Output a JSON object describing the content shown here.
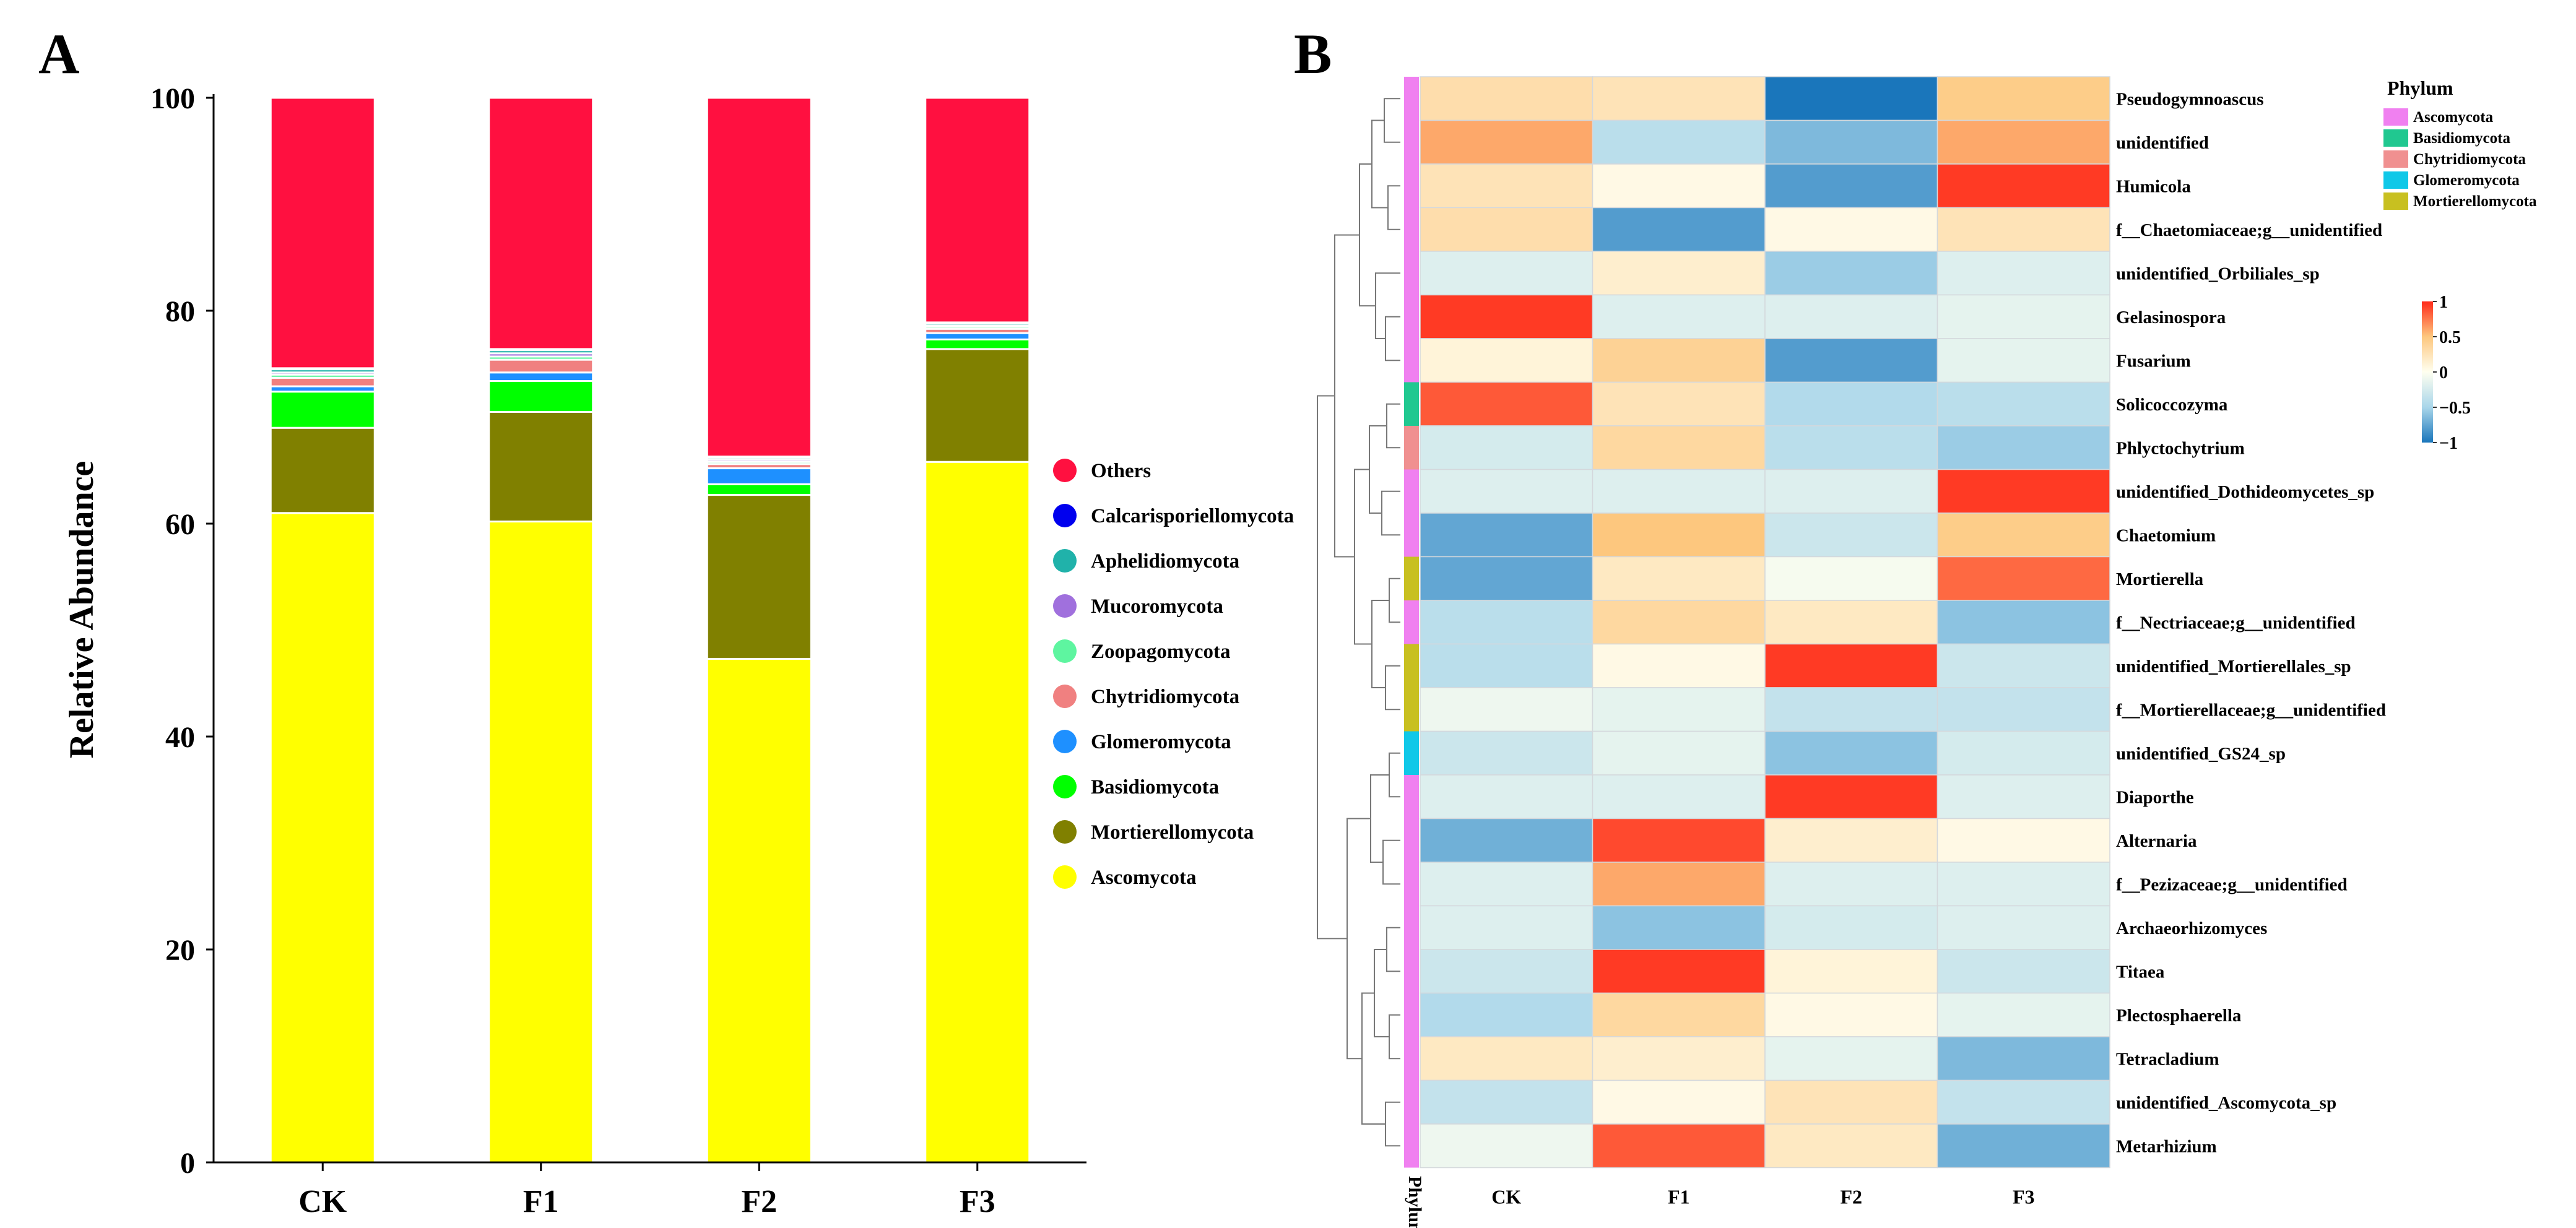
{
  "panel_a": {
    "label": "A",
    "chart_data": {
      "type": "bar",
      "stacked": true,
      "categories": [
        "CK",
        "F1",
        "F2",
        "F3"
      ],
      "ylabel": "Relative Abundance",
      "xlabel": "",
      "ylim": [
        0,
        100
      ],
      "yticks": [
        0,
        20,
        40,
        60,
        80,
        100
      ],
      "legend_position": "right",
      "series": [
        {
          "name": "Ascomycota",
          "color": "#ffff00",
          "values": [
            61.0,
            60.2,
            47.3,
            65.8
          ]
        },
        {
          "name": "Mortierellomycota",
          "color": "#808000",
          "values": [
            8.0,
            10.3,
            15.4,
            10.6
          ]
        },
        {
          "name": "Basidiomycota",
          "color": "#00ff00",
          "values": [
            3.4,
            2.9,
            1.0,
            0.9
          ]
        },
        {
          "name": "Glomeromycota",
          "color": "#1e90ff",
          "values": [
            0.5,
            0.8,
            1.5,
            0.6
          ]
        },
        {
          "name": "Chytridiomycota",
          "color": "#f08080",
          "values": [
            0.8,
            1.2,
            0.4,
            0.4
          ]
        },
        {
          "name": "Zoopagomycota",
          "color": "#5ef5a0",
          "values": [
            0.3,
            0.3,
            0.2,
            0.2
          ]
        },
        {
          "name": "Mucoromycota",
          "color": "#a070dd",
          "values": [
            0.2,
            0.3,
            0.2,
            0.1
          ]
        },
        {
          "name": "Aphelidiomycota",
          "color": "#20b2aa",
          "values": [
            0.3,
            0.3,
            0.2,
            0.2
          ]
        },
        {
          "name": "Calcarisporiellomycota",
          "color": "#0000ee",
          "values": [
            0.1,
            0.1,
            0.1,
            0.1
          ]
        },
        {
          "name": "Others",
          "color": "#ff1040",
          "values": [
            25.4,
            23.6,
            33.7,
            21.1
          ]
        }
      ],
      "legend_order": [
        "Others",
        "Calcarisporiellomycota",
        "Aphelidiomycota",
        "Mucoromycota",
        "Zoopagomycota",
        "Chytridiomycota",
        "Glomeromycota",
        "Basidiomycota",
        "Mortierellomycota",
        "Ascomycota"
      ]
    }
  },
  "panel_b": {
    "label": "B",
    "chart_data": {
      "type": "heatmap",
      "columns": [
        "CK",
        "F1",
        "F2",
        "F3"
      ],
      "phylum_axis_label": "Phylum",
      "phylum_legend_title": "Phylum",
      "colorbar_ticks": [
        {
          "value": 1,
          "label": "1"
        },
        {
          "value": 0.5,
          "label": "0.5"
        },
        {
          "value": 0,
          "label": "0"
        },
        {
          "value": -0.5,
          "label": "−0.5"
        },
        {
          "value": -1,
          "label": "−1"
        }
      ],
      "color_range": [
        -1,
        1
      ],
      "phyla": [
        {
          "name": "Ascomycota",
          "color": "#f080f0"
        },
        {
          "name": "Basidiomycota",
          "color": "#20c890"
        },
        {
          "name": "Chytridiomycota",
          "color": "#f09090"
        },
        {
          "name": "Glomeromycota",
          "color": "#10c8e8"
        },
        {
          "name": "Mortierellomycota",
          "color": "#c8c020"
        }
      ],
      "rows": [
        {
          "name": "Pseudogymnoascus",
          "phylum": "Ascomycota",
          "values": [
            0.3,
            0.25,
            -1.0,
            0.45
          ]
        },
        {
          "name": "unidentified",
          "phylum": "Ascomycota",
          "values": [
            0.6,
            -0.4,
            -0.65,
            0.6
          ]
        },
        {
          "name": "Humicola",
          "phylum": "Ascomycota",
          "values": [
            0.25,
            0.05,
            -0.8,
            0.95
          ]
        },
        {
          "name": "f__Chaetomiaceae;g__unidentified",
          "phylum": "Ascomycota",
          "values": [
            0.3,
            -0.8,
            0.05,
            0.25
          ]
        },
        {
          "name": "unidentified_Orbiliales_sp",
          "phylum": "Ascomycota",
          "values": [
            -0.2,
            0.15,
            -0.55,
            -0.2
          ]
        },
        {
          "name": "Gelasinospora",
          "phylum": "Ascomycota",
          "values": [
            0.95,
            -0.2,
            -0.2,
            -0.15
          ]
        },
        {
          "name": "Fusarium",
          "phylum": "Ascomycota",
          "values": [
            0.1,
            0.4,
            -0.8,
            -0.15
          ]
        },
        {
          "name": "Solicoccozyma",
          "phylum": "Basidiomycota",
          "values": [
            0.85,
            0.25,
            -0.45,
            -0.4
          ]
        },
        {
          "name": "Phlyctochytrium",
          "phylum": "Chytridiomycota",
          "values": [
            -0.25,
            0.35,
            -0.4,
            -0.55
          ]
        },
        {
          "name": "unidentified_Dothideomycetes_sp",
          "phylum": "Ascomycota",
          "values": [
            -0.2,
            -0.2,
            -0.2,
            0.95
          ]
        },
        {
          "name": "Chaetomium",
          "phylum": "Ascomycota",
          "values": [
            -0.75,
            0.5,
            -0.3,
            0.45
          ]
        },
        {
          "name": "Mortierella",
          "phylum": "Mortierellomycota",
          "values": [
            -0.75,
            0.2,
            -0.05,
            0.8
          ]
        },
        {
          "name": "f__Nectriaceae;g__unidentified",
          "phylum": "Ascomycota",
          "values": [
            -0.4,
            0.35,
            0.2,
            -0.6
          ]
        },
        {
          "name": "unidentified_Mortierellales_sp",
          "phylum": "Mortierellomycota",
          "values": [
            -0.4,
            0.05,
            0.95,
            -0.3
          ]
        },
        {
          "name": "f__Mortierellaceae;g__unidentified",
          "phylum": "Mortierellomycota",
          "values": [
            -0.1,
            -0.15,
            -0.35,
            -0.35
          ]
        },
        {
          "name": "unidentified_GS24_sp",
          "phylum": "Glomeromycota",
          "values": [
            -0.3,
            -0.15,
            -0.6,
            -0.25
          ]
        },
        {
          "name": "Diaporthe",
          "phylum": "Ascomycota",
          "values": [
            -0.2,
            -0.2,
            0.95,
            -0.2
          ]
        },
        {
          "name": "Alternaria",
          "phylum": "Ascomycota",
          "values": [
            -0.7,
            0.9,
            0.15,
            0.05
          ]
        },
        {
          "name": "f__Pezizaceae;g__unidentified",
          "phylum": "Ascomycota",
          "values": [
            -0.2,
            0.6,
            -0.2,
            -0.2
          ]
        },
        {
          "name": "Archaeorhizomyces",
          "phylum": "Ascomycota",
          "values": [
            -0.2,
            -0.6,
            -0.25,
            -0.2
          ]
        },
        {
          "name": "Titaea",
          "phylum": "Ascomycota",
          "values": [
            -0.3,
            0.95,
            0.1,
            -0.3
          ]
        },
        {
          "name": "Plectosphaerella",
          "phylum": "Ascomycota",
          "values": [
            -0.45,
            0.35,
            0.05,
            -0.15
          ]
        },
        {
          "name": "Tetracladium",
          "phylum": "Ascomycota",
          "values": [
            0.2,
            0.15,
            -0.15,
            -0.65
          ]
        },
        {
          "name": "unidentified_Ascomycota_sp",
          "phylum": "Ascomycota",
          "values": [
            -0.35,
            0.05,
            0.25,
            -0.35
          ]
        },
        {
          "name": "Metarhizium",
          "phylum": "Ascomycota",
          "values": [
            -0.1,
            0.85,
            0.2,
            -0.7
          ]
        }
      ]
    }
  }
}
